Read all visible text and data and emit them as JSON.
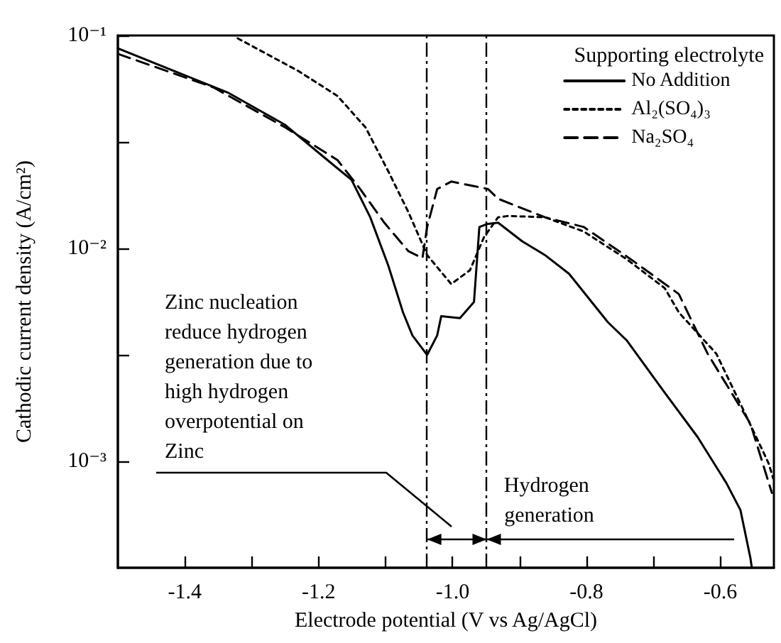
{
  "chart_data": {
    "type": "line",
    "xlabel": "Electrode potential (V vs Ag/AgCl)",
    "ylabel": "Cathodic current density (A/cm²)",
    "legend_title": "Supporting electrolyte",
    "legend": "top right",
    "log": "y",
    "grid": false,
    "marker": "none",
    "xlim": [
      -1.5,
      -0.52
    ],
    "xticks": [
      -1.4,
      {
        "value": -1.3,
        "label": null
      },
      -1.2,
      {
        "value": -1.1,
        "label": null
      },
      {
        "value": -1.0,
        "label": "-1.0"
      },
      {
        "value": -0.9,
        "label": null
      },
      -0.8,
      {
        "value": -0.7,
        "label": null
      },
      -0.6
    ],
    "ylim": [
      0.000316,
      0.1
    ],
    "yticks": [
      {
        "value": 0.1,
        "label": "10⁻¹"
      },
      {
        "value": 0.0316,
        "label": null
      },
      {
        "value": 0.01,
        "label": "10⁻²"
      },
      {
        "value": 0.00316,
        "label": null
      },
      {
        "value": 0.001,
        "label": "10⁻³"
      }
    ],
    "series": [
      {
        "name": "No Addition",
        "color": "#000000",
        "line_style": "solid",
        "x": [
          -1.5,
          -1.336,
          -1.25,
          -1.187,
          -1.151,
          -1.123,
          -1.096,
          -1.074,
          -1.06,
          -1.038,
          -1.023,
          -1.017,
          -0.989,
          -0.968,
          -0.96,
          -0.949,
          -0.932,
          -0.896,
          -0.862,
          -0.826,
          -0.768,
          -0.74,
          -0.683,
          -0.634,
          -0.591,
          -0.57,
          -0.555,
          -0.553
        ],
        "values": [
          0.087,
          0.054,
          0.038,
          0.026,
          0.021,
          0.014,
          0.0083,
          0.005,
          0.0039,
          0.00316,
          0.0039,
          0.0048,
          0.0047,
          0.0056,
          0.0126,
          0.013,
          0.0132,
          0.0108,
          0.0093,
          0.0076,
          0.0045,
          0.0037,
          0.0021,
          0.0013,
          0.00079,
          0.00059,
          0.00035,
          0.000316
        ]
      },
      {
        "name": "Al₂(SO₄)₃",
        "color": "#000000",
        "line_style": "dotted",
        "x": [
          -1.321,
          -1.23,
          -1.172,
          -1.13,
          -1.096,
          -1.066,
          -1.038,
          -1.002,
          -0.974,
          -0.953,
          -0.932,
          -0.917,
          -0.862,
          -0.804,
          -0.74,
          -0.683,
          -0.662,
          -0.606,
          -0.564,
          -0.528,
          -0.521
        ],
        "values": [
          0.097,
          0.068,
          0.052,
          0.037,
          0.023,
          0.0148,
          0.0093,
          0.0068,
          0.0079,
          0.0113,
          0.014,
          0.0142,
          0.014,
          0.012,
          0.0089,
          0.0065,
          0.005,
          0.0032,
          0.0017,
          0.00098,
          0.00083
        ]
      },
      {
        "name": "Na₂SO₄",
        "color": "#000000",
        "line_style": "dashed",
        "x": [
          -1.5,
          -1.357,
          -1.25,
          -1.172,
          -1.138,
          -1.102,
          -1.066,
          -1.045,
          -1.038,
          -1.023,
          -1.002,
          -0.947,
          -0.932,
          -0.862,
          -0.804,
          -0.734,
          -0.662,
          -0.619,
          -0.555,
          -0.523
        ],
        "values": [
          0.082,
          0.057,
          0.037,
          0.026,
          0.019,
          0.0132,
          0.0097,
          0.009,
          0.0126,
          0.019,
          0.0206,
          0.019,
          0.0171,
          0.014,
          0.0126,
          0.0089,
          0.0061,
          0.0032,
          0.0015,
          0.00071
        ]
      }
    ],
    "ref_lines": [
      {
        "axis": "x",
        "value": -1.038,
        "color": "#000000",
        "line_style": "dashed"
      },
      {
        "axis": "x",
        "value": -0.949,
        "color": "#000000",
        "line_style": "dashed"
      }
    ],
    "annotations": [
      "Zinc nucleation reduce hydrogen generation due to high hydrogen overpotential on Zinc",
      {
        "text": "Hydrogen generation",
        "x": -0.949,
        "y": 0.00043
      }
    ]
  }
}
